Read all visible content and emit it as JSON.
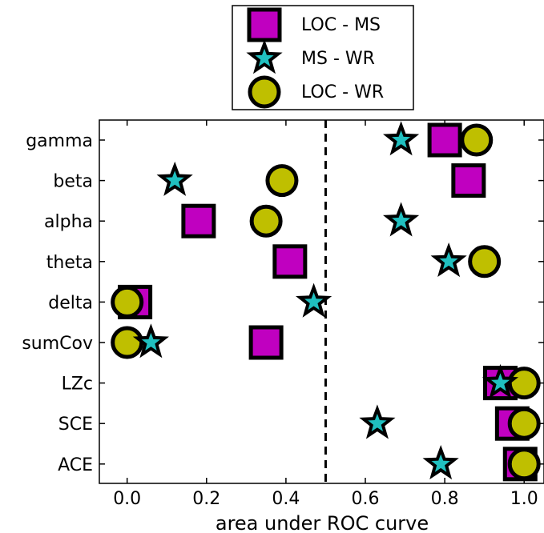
{
  "chart_data": {
    "type": "scatter",
    "orientation": "horizontal-categories",
    "title": "",
    "xlabel": "area under ROC curve",
    "ylabel": "",
    "xlim": [
      -0.07,
      1.05
    ],
    "xticks": [
      0.0,
      0.2,
      0.4,
      0.6,
      0.8,
      1.0
    ],
    "xtick_labels": [
      "0.0",
      "0.2",
      "0.4",
      "0.6",
      "0.8",
      "1.0"
    ],
    "categories": [
      "gamma",
      "beta",
      "alpha",
      "theta",
      "delta",
      "sumCov",
      "LZc",
      "SCE",
      "ACE"
    ],
    "reference_line": {
      "x": 0.5,
      "style": "dashed"
    },
    "grid": false,
    "legend_position": "top-center",
    "series": [
      {
        "name": "LOC - MS",
        "marker": "square",
        "color": "#c000c0",
        "values": [
          0.8,
          0.86,
          0.18,
          0.41,
          0.02,
          0.35,
          0.94,
          0.97,
          0.99
        ]
      },
      {
        "name": "MS - WR",
        "marker": "star",
        "color": "#20c0c0",
        "values": [
          0.69,
          0.12,
          0.69,
          0.81,
          0.47,
          0.06,
          0.94,
          0.63,
          0.79
        ]
      },
      {
        "name": "LOC - WR",
        "marker": "circle",
        "color": "#bfbf00",
        "values": [
          0.88,
          0.39,
          0.35,
          0.9,
          0.0,
          0.0,
          1.0,
          1.0,
          1.0
        ]
      }
    ]
  }
}
